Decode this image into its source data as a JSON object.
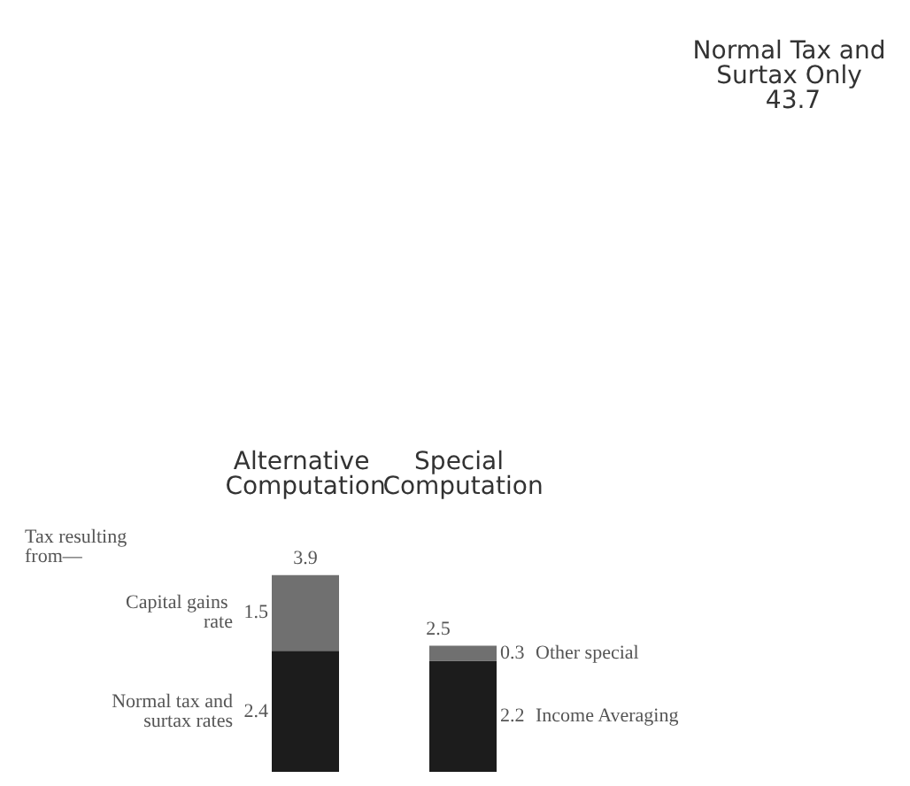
{
  "chart_data": {
    "type": "bar",
    "stacked": true,
    "data_labels": true,
    "categories": [
      "Alternative Computation",
      "Special Computation"
    ],
    "series": [
      {
        "name": "Normal tax and surtax rates",
        "color": "#1c1c1c",
        "values": [
          2.4,
          null
        ]
      },
      {
        "name": "Income Averaging",
        "color": "#1c1c1c",
        "values": [
          null,
          2.2
        ]
      },
      {
        "name": "Capital gains rate",
        "color": "#707070",
        "values": [
          1.5,
          null
        ]
      },
      {
        "name": "Other special",
        "color": "#707070",
        "values": [
          null,
          0.3
        ]
      }
    ],
    "totals": [
      "3.9",
      "2.5"
    ],
    "annotations": [
      "Normal Tax and Surtax Only 43.7",
      "Tax resulting from—"
    ]
  }
}
